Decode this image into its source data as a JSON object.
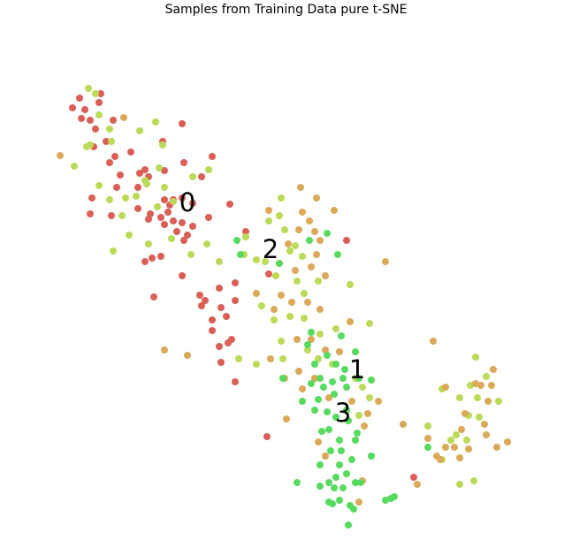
{
  "chart_data": {
    "type": "scatter",
    "title": "Samples from Training Data pure t-SNE",
    "xlabel": "",
    "ylabel": "",
    "axes_visible": false,
    "grid": false,
    "legend": "none",
    "xlim": [
      60,
      580
    ],
    "ylim": [
      100,
      600
    ],
    "y_axis_inverted": true,
    "marker": "circle",
    "series_colors": {
      "0": "#db5f57",
      "1": "#b9db57",
      "2": "#dba957",
      "3": "#57db5f"
    },
    "series": [
      {
        "class": "0",
        "color": "#db5f57",
        "points": [
          [
            90,
            111
          ],
          [
            114,
            106
          ],
          [
            82,
            122
          ],
          [
            96,
            124
          ],
          [
            92,
            134
          ],
          [
            112,
            116
          ],
          [
            102,
            136
          ],
          [
            108,
            146
          ],
          [
            128,
            136
          ],
          [
            106,
            166
          ],
          [
            120,
            160
          ],
          [
            130,
            177
          ],
          [
            124,
            184
          ],
          [
            136,
            198
          ],
          [
            132,
            212
          ],
          [
            148,
            172
          ],
          [
            158,
            196
          ],
          [
            164,
            192
          ],
          [
            186,
            193
          ],
          [
            156,
            212
          ],
          [
            168,
            200
          ],
          [
            206,
            140
          ],
          [
            184,
            160
          ],
          [
            208,
            184
          ],
          [
            240,
            177
          ],
          [
            228,
            200
          ],
          [
            102,
            242
          ],
          [
            104,
            224
          ],
          [
            126,
            244
          ],
          [
            156,
            236
          ],
          [
            170,
            242
          ],
          [
            192,
            232
          ],
          [
            186,
            226
          ],
          [
            196,
            226
          ],
          [
            206,
            224
          ],
          [
            218,
            230
          ],
          [
            190,
            240
          ],
          [
            182,
            246
          ],
          [
            168,
            248
          ],
          [
            186,
            254
          ],
          [
            196,
            250
          ],
          [
            206,
            252
          ],
          [
            200,
            262
          ],
          [
            212,
            266
          ],
          [
            218,
            256
          ],
          [
            208,
            272
          ],
          [
            236,
            246
          ],
          [
            260,
            231
          ],
          [
            278,
            262
          ],
          [
            172,
            292
          ],
          [
            182,
            290
          ],
          [
            164,
            296
          ],
          [
            206,
            312
          ],
          [
            174,
            336
          ],
          [
            226,
            334
          ],
          [
            248,
            326
          ],
          [
            266,
            320
          ],
          [
            232,
            340
          ],
          [
            250,
            348
          ],
          [
            266,
            340
          ],
          [
            228,
            346
          ],
          [
            240,
            362
          ],
          [
            256,
            358
          ],
          [
            240,
            374
          ],
          [
            262,
            384
          ],
          [
            248,
            392
          ],
          [
            258,
            388
          ],
          [
            250,
            410
          ],
          [
            266,
            432
          ],
          [
            304,
            310
          ],
          [
            302,
            494
          ],
          [
            392,
            272
          ],
          [
            468,
            540
          ]
        ]
      },
      {
        "class": "1",
        "color": "#b9db57",
        "points": [
          [
            100,
            100
          ],
          [
            108,
            106
          ],
          [
            112,
            130
          ],
          [
            98,
            166
          ],
          [
            102,
            164
          ],
          [
            84,
            188
          ],
          [
            124,
            146
          ],
          [
            126,
            160
          ],
          [
            158,
            148
          ],
          [
            176,
            138
          ],
          [
            184,
            164
          ],
          [
            180,
            190
          ],
          [
            166,
            208
          ],
          [
            112,
            210
          ],
          [
            124,
            226
          ],
          [
            142,
            224
          ],
          [
            138,
            244
          ],
          [
            154,
            222
          ],
          [
            164,
            204
          ],
          [
            186,
            212
          ],
          [
            178,
            234
          ],
          [
            196,
            228
          ],
          [
            218,
            200
          ],
          [
            236,
            192
          ],
          [
            146,
            266
          ],
          [
            128,
            284
          ],
          [
            168,
            276
          ],
          [
            194,
            270
          ],
          [
            216,
            288
          ],
          [
            234,
            276
          ],
          [
            248,
            296
          ],
          [
            278,
            268
          ],
          [
            276,
            288
          ],
          [
            290,
            294
          ],
          [
            300,
            296
          ],
          [
            318,
            224
          ],
          [
            316,
            244
          ],
          [
            304,
            250
          ],
          [
            322,
            260
          ],
          [
            334,
            278
          ],
          [
            342,
            290
          ],
          [
            328,
            284
          ],
          [
            312,
            312
          ],
          [
            336,
            318
          ],
          [
            344,
            332
          ],
          [
            360,
            318
          ],
          [
            296,
            346
          ],
          [
            310,
            362
          ],
          [
            328,
            358
          ],
          [
            318,
            386
          ],
          [
            344,
            360
          ],
          [
            362,
            378
          ],
          [
            380,
            372
          ],
          [
            396,
            322
          ],
          [
            418,
            366
          ],
          [
            270,
            406
          ],
          [
            290,
            412
          ],
          [
            320,
            406
          ],
          [
            348,
            396
          ],
          [
            360,
            406
          ],
          [
            376,
            412
          ],
          [
            402,
            428
          ],
          [
            410,
            438
          ],
          [
            418,
            450
          ],
          [
            406,
            470
          ],
          [
            500,
            440
          ],
          [
            538,
            404
          ],
          [
            520,
            450
          ],
          [
            532,
            436
          ],
          [
            550,
            426
          ],
          [
            540,
            450
          ],
          [
            564,
            454
          ],
          [
            530,
            470
          ],
          [
            542,
            472
          ],
          [
            510,
            498
          ],
          [
            500,
            520
          ],
          [
            516,
            492
          ],
          [
            528,
            498
          ],
          [
            536,
            544
          ],
          [
            520,
            548
          ],
          [
            484,
            482
          ]
        ]
      },
      {
        "class": "2",
        "color": "#dba957",
        "points": [
          [
            68,
            176
          ],
          [
            140,
            133
          ],
          [
            340,
            212
          ],
          [
            358,
            224
          ],
          [
            378,
            238
          ],
          [
            342,
            240
          ],
          [
            350,
            250
          ],
          [
            338,
            260
          ],
          [
            356,
            262
          ],
          [
            362,
            272
          ],
          [
            326,
            276
          ],
          [
            316,
            298
          ],
          [
            334,
            306
          ],
          [
            352,
            302
          ],
          [
            368,
            312
          ],
          [
            358,
            288
          ],
          [
            318,
            334
          ],
          [
            330,
            342
          ],
          [
            348,
            342
          ],
          [
            362,
            350
          ],
          [
            396,
            364
          ],
          [
            336,
            384
          ],
          [
            352,
            384
          ],
          [
            368,
            396
          ],
          [
            384,
            398
          ],
          [
            338,
            420
          ],
          [
            322,
            428
          ],
          [
            342,
            440
          ],
          [
            356,
            428
          ],
          [
            372,
            450
          ],
          [
            398,
            454
          ],
          [
            416,
            468
          ],
          [
            428,
            454
          ],
          [
            412,
            482
          ],
          [
            324,
            474
          ],
          [
            360,
            500
          ],
          [
            368,
            516
          ],
          [
            410,
            544
          ],
          [
            406,
            568
          ],
          [
            436,
            296
          ],
          [
            456,
            480
          ],
          [
            472,
            548
          ],
          [
            484,
            496
          ],
          [
            490,
            386
          ],
          [
            494,
            516
          ],
          [
            498,
            520
          ],
          [
            504,
            438
          ],
          [
            504,
            506
          ],
          [
            514,
            506
          ],
          [
            522,
            486
          ],
          [
            520,
            518
          ],
          [
            526,
            468
          ],
          [
            530,
            508
          ],
          [
            538,
            434
          ],
          [
            544,
            436
          ],
          [
            548,
            480
          ],
          [
            550,
            492
          ],
          [
            552,
            454
          ],
          [
            556,
            436
          ],
          [
            558,
            418
          ],
          [
            562,
            506
          ],
          [
            574,
            500
          ],
          [
            186,
            396
          ],
          [
            212,
            402
          ],
          [
            304,
            238
          ],
          [
            310,
            350
          ],
          [
            306,
            406
          ],
          [
            290,
            332
          ]
        ]
      },
      {
        "class": "3",
        "color": "#57db5f",
        "points": [
          [
            268,
            272
          ],
          [
            272,
            288
          ],
          [
            316,
            298
          ],
          [
            370,
            264
          ],
          [
            382,
            288
          ],
          [
            350,
            272
          ],
          [
            352,
            376
          ],
          [
            348,
            390
          ],
          [
            386,
            380
          ],
          [
            356,
            412
          ],
          [
            370,
            402
          ],
          [
            380,
            412
          ],
          [
            390,
            418
          ],
          [
            402,
            398
          ],
          [
            388,
            428
          ],
          [
            376,
            432
          ],
          [
            366,
            438
          ],
          [
            352,
            434
          ],
          [
            342,
            454
          ],
          [
            360,
            452
          ],
          [
            378,
            446
          ],
          [
            392,
            438
          ],
          [
            406,
            428
          ],
          [
            420,
            430
          ],
          [
            356,
            464
          ],
          [
            370,
            466
          ],
          [
            380,
            472
          ],
          [
            392,
            464
          ],
          [
            394,
            476
          ],
          [
            404,
            490
          ],
          [
            372,
            486
          ],
          [
            384,
            498
          ],
          [
            374,
            510
          ],
          [
            386,
            510
          ],
          [
            402,
            498
          ],
          [
            398,
            520
          ],
          [
            420,
            516
          ],
          [
            362,
            526
          ],
          [
            384,
            526
          ],
          [
            380,
            540
          ],
          [
            372,
            546
          ],
          [
            392,
            536
          ],
          [
            402,
            546
          ],
          [
            408,
            546
          ],
          [
            336,
            546
          ],
          [
            362,
            550
          ],
          [
            378,
            552
          ],
          [
            388,
            552
          ],
          [
            384,
            566
          ],
          [
            372,
            568
          ],
          [
            376,
            570
          ],
          [
            396,
            572
          ],
          [
            400,
            576
          ],
          [
            436,
            566
          ],
          [
            442,
            564
          ],
          [
            446,
            562
          ],
          [
            394,
            594
          ],
          [
            484,
            506
          ],
          [
            320,
            428
          ],
          [
            364,
            488
          ],
          [
            362,
            428
          ]
        ]
      }
    ],
    "annotations": [
      {
        "text": "0",
        "x": 212,
        "y": 229
      },
      {
        "text": "2",
        "x": 306,
        "y": 282
      },
      {
        "text": "1",
        "x": 404,
        "y": 418
      },
      {
        "text": "3",
        "x": 388,
        "y": 467
      }
    ]
  }
}
